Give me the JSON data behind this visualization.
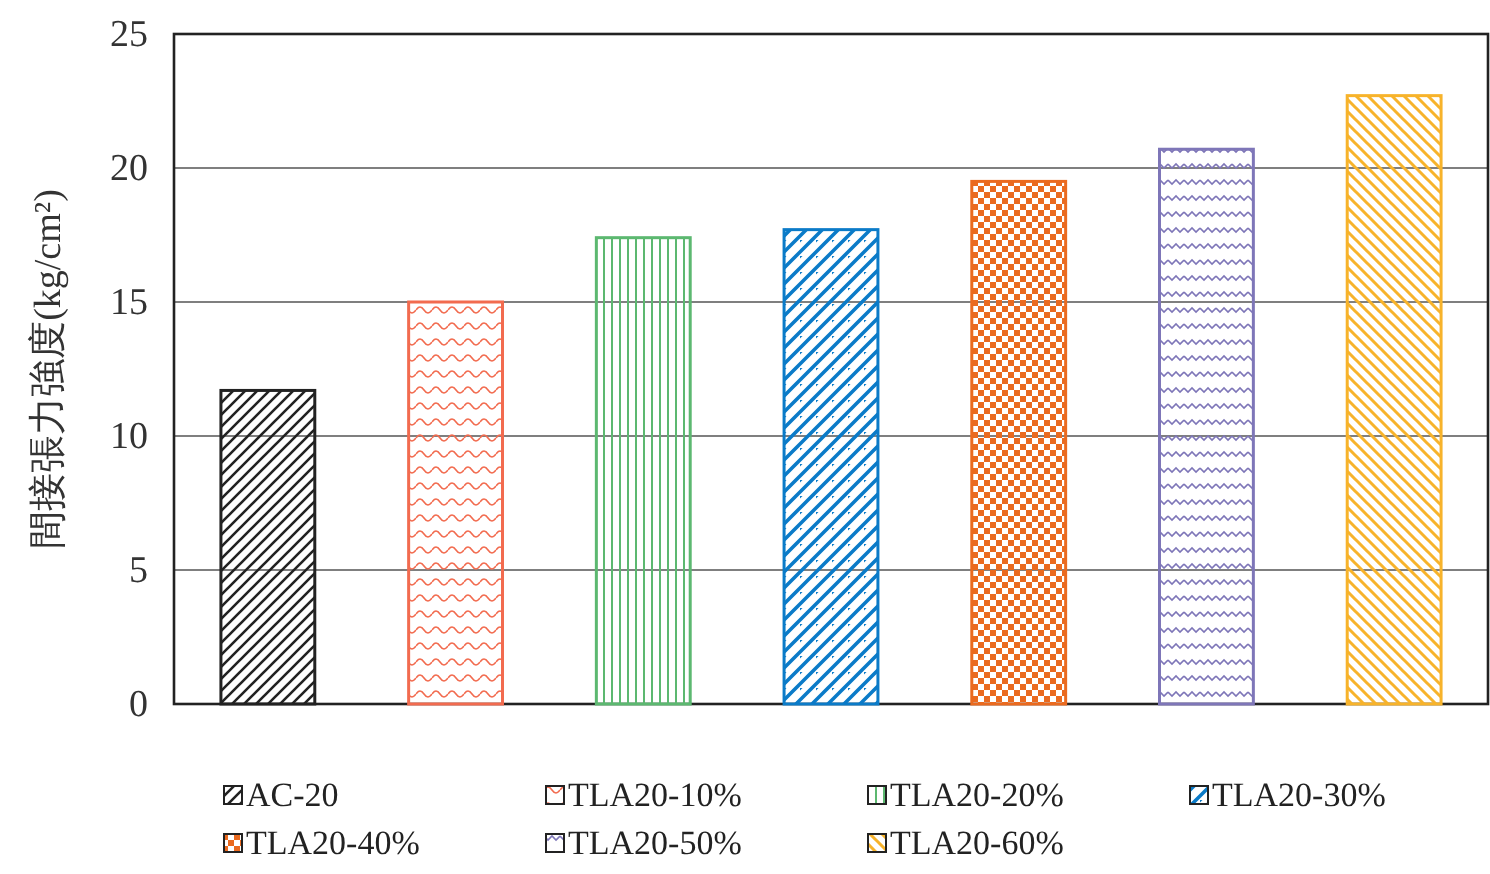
{
  "chart_data": {
    "type": "bar",
    "ylabel": "間接張力強度(kg/cm²)",
    "categories": [
      null,
      null,
      null,
      null,
      null,
      null,
      null
    ],
    "series": [
      {
        "name": "AC-20",
        "color": "#222222",
        "values": [
          11.7,
          null,
          null,
          null,
          null,
          null,
          null
        ]
      },
      {
        "name": "TLA20-10%",
        "color": "#f26b4f",
        "values": [
          null,
          15.0,
          null,
          null,
          null,
          null,
          null
        ]
      },
      {
        "name": "TLA20-20%",
        "color": "#5cb870",
        "values": [
          null,
          null,
          17.4,
          null,
          null,
          null,
          null
        ]
      },
      {
        "name": "TLA20-30%",
        "color": "#0b7bc8",
        "values": [
          null,
          null,
          null,
          17.7,
          null,
          null,
          null
        ]
      },
      {
        "name": "TLA20-40%",
        "color": "#ea6a1f",
        "values": [
          null,
          null,
          null,
          null,
          19.5,
          null,
          null
        ]
      },
      {
        "name": "TLA20-50%",
        "color": "#7e76b8",
        "values": [
          null,
          null,
          null,
          null,
          null,
          20.7,
          null
        ]
      },
      {
        "name": "TLA20-60%",
        "color": "#f7b32b",
        "values": [
          null,
          null,
          null,
          null,
          null,
          null,
          22.7
        ]
      }
    ],
    "ylim": [
      0,
      25
    ],
    "yticks": [
      0,
      5,
      10,
      15,
      20,
      25
    ],
    "grid": "y",
    "legend": "bottom",
    "tick_labels": "y"
  }
}
